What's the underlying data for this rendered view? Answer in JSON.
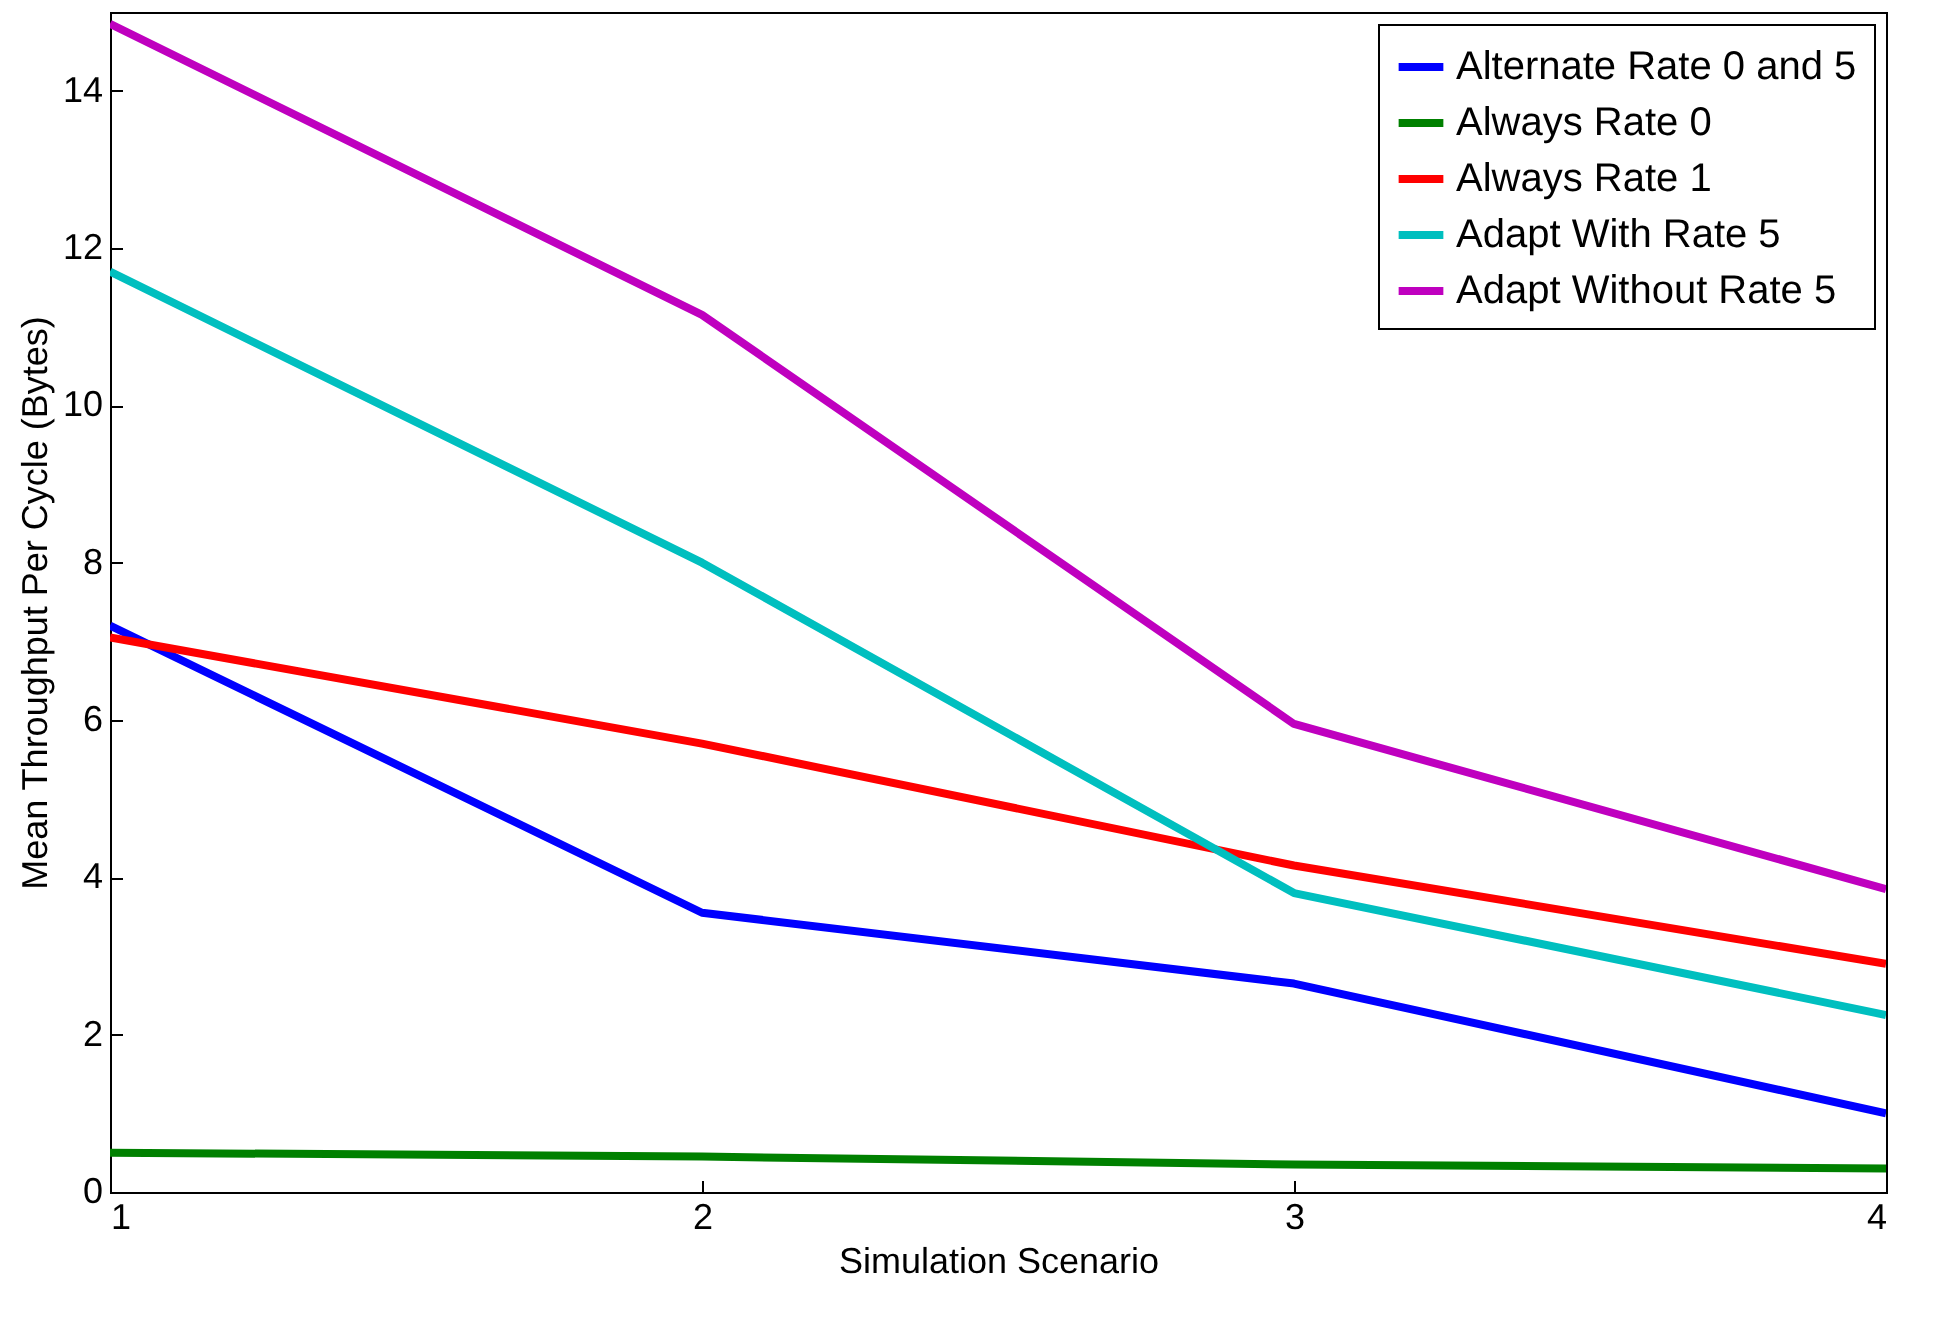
{
  "chart_data": {
    "type": "line",
    "xlabel": "Simulation Scenario",
    "ylabel": "Mean Throughput Per Cycle (Bytes)",
    "x": [
      1,
      2,
      3,
      4
    ],
    "xlim": [
      1,
      4
    ],
    "xticks": [
      1,
      2,
      3,
      4
    ],
    "ylim": [
      0,
      15
    ],
    "yticks": [
      0,
      2,
      4,
      6,
      8,
      10,
      12,
      14
    ],
    "grid": false,
    "legend": "top right",
    "series": [
      {
        "name": "Alternate Rate 0 and 5",
        "color": "#0000ff",
        "values": [
          7.2,
          3.55,
          2.65,
          1.0
        ]
      },
      {
        "name": "Always Rate 0",
        "color": "#008000",
        "values": [
          0.5,
          0.45,
          0.35,
          0.3
        ]
      },
      {
        "name": "Always Rate 1",
        "color": "#ff0000",
        "values": [
          7.05,
          5.7,
          4.15,
          2.9
        ]
      },
      {
        "name": "Adapt With Rate 5",
        "color": "#00bfbf",
        "values": [
          11.7,
          8.0,
          3.8,
          2.25
        ]
      },
      {
        "name": "Adapt Without Rate 5",
        "color": "#bf00bf",
        "values": [
          14.85,
          11.15,
          5.95,
          3.85
        ]
      }
    ]
  }
}
